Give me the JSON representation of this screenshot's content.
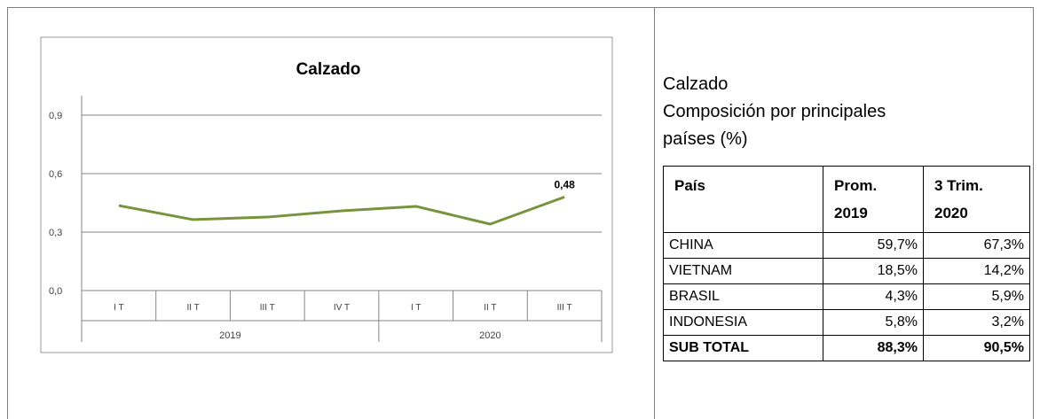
{
  "chart_data": {
    "type": "line",
    "title": "Calzado",
    "groups": [
      {
        "label": "2019",
        "categories": [
          "I T",
          "II T",
          "III T",
          "IV T"
        ]
      },
      {
        "label": "2020",
        "categories": [
          "I T",
          "II T",
          "III T"
        ]
      }
    ],
    "values": [
      0.436,
      0.364,
      0.377,
      0.409,
      0.432,
      0.341,
      0.48
    ],
    "value_labels": [
      null,
      null,
      null,
      null,
      null,
      null,
      "0,48"
    ],
    "color": "#77933c",
    "ylim": [
      0,
      1
    ],
    "yticks": [
      {
        "value": 0,
        "label": "0,0"
      },
      {
        "value": 0.3,
        "label": "0,3"
      },
      {
        "value": 0.6,
        "label": "0,6"
      },
      {
        "value": 0.9,
        "label": "0,9"
      }
    ],
    "grid": true
  },
  "side": {
    "heading": "Calzado",
    "subheading": "Composición por principales países (%)"
  },
  "table": {
    "header": [
      "País",
      "Prom. 2019",
      "3 Trim. 2020"
    ],
    "rows": [
      [
        "CHINA",
        "59,7%",
        "67,3%"
      ],
      [
        "VIETNAM",
        "18,5%",
        "14,2%"
      ],
      [
        "BRASIL",
        "4,3%",
        "5,9%"
      ],
      [
        "INDONESIA",
        "5,8%",
        "3,2%"
      ]
    ],
    "total": [
      "SUB TOTAL",
      "88,3%",
      "90,5%"
    ]
  }
}
